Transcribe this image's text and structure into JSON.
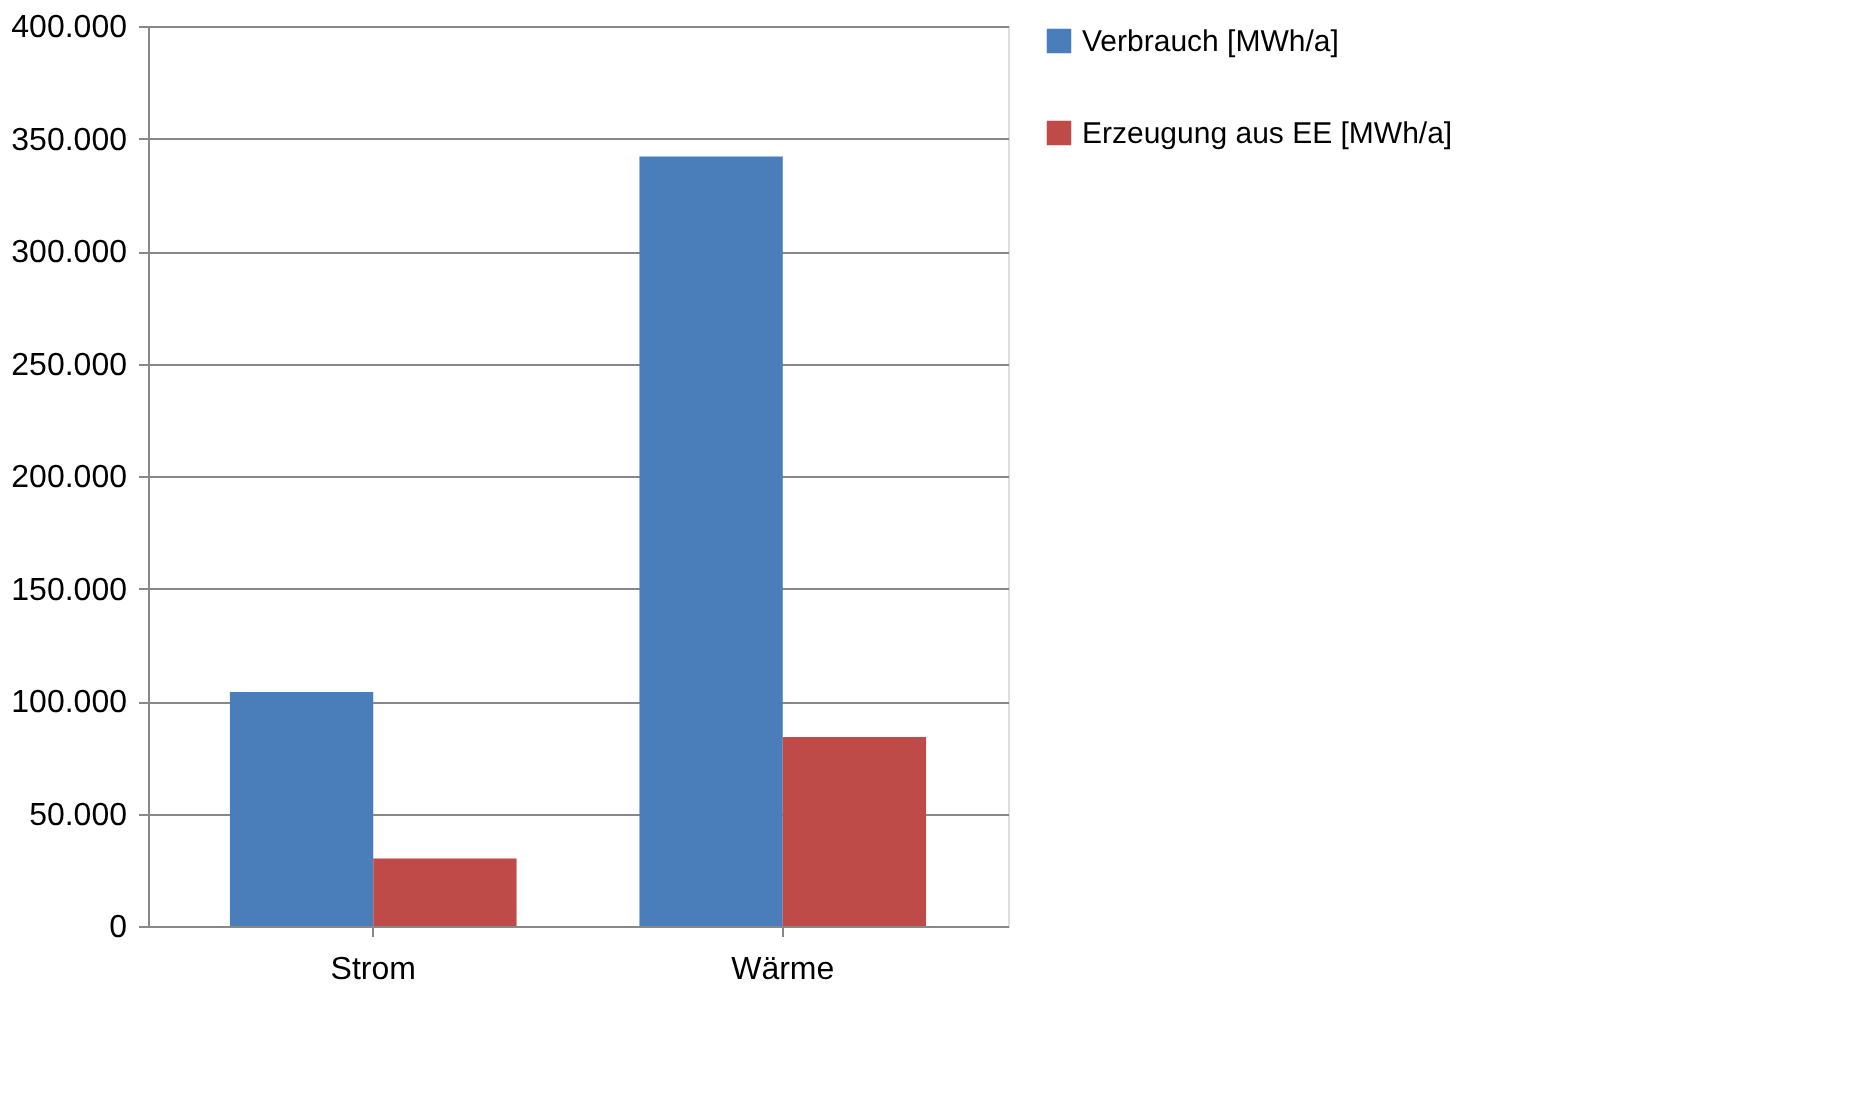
{
  "chart_data": {
    "type": "bar",
    "categories": [
      "Strom",
      "Wärme"
    ],
    "series": [
      {
        "name": "Verbrauch [MWh/a]",
        "color": "#4a7ebb",
        "values": [
          104000,
          342000
        ]
      },
      {
        "name": "Erzeugung aus EE [MWh/a]",
        "color": "#be4b48",
        "values": [
          30000,
          84000
        ]
      }
    ],
    "ylim": [
      0,
      400000
    ],
    "yticks": [
      {
        "value": 0,
        "label": "0"
      },
      {
        "value": 50000,
        "label": "50.000"
      },
      {
        "value": 100000,
        "label": "100.000"
      },
      {
        "value": 150000,
        "label": "150.000"
      },
      {
        "value": 200000,
        "label": "200.000"
      },
      {
        "value": 250000,
        "label": "250.000"
      },
      {
        "value": 300000,
        "label": "300.000"
      },
      {
        "value": 350000,
        "label": "350.000"
      },
      {
        "value": 400000,
        "label": "400.000"
      }
    ],
    "grid": "y",
    "legend": "right"
  }
}
